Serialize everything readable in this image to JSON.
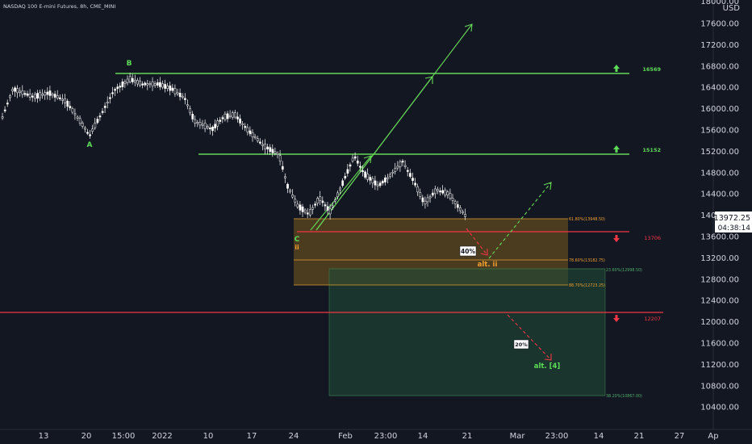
{
  "header": {
    "symbol_title": "NASDAQ 100 E-mini Futures, 8h, CME_MINI"
  },
  "price_axis": {
    "currency": "USD",
    "top_partial_label": "18000.00",
    "labels": [
      "17600.00",
      "17200.00",
      "16800.00",
      "16400.00",
      "16000.00",
      "15600.00",
      "15200.00",
      "14800.00",
      "14400.00",
      "14000.00",
      "13600.00",
      "13200.00",
      "12800.00",
      "12400.00",
      "12000.00",
      "11600.00",
      "11200.00",
      "10800.00",
      "10400.00"
    ],
    "current_price": "13972.25",
    "countdown": "04:38:14"
  },
  "time_axis": {
    "labels": [
      "13",
      "20",
      "15:00",
      "2022",
      "10",
      "17",
      "24",
      "Feb",
      "23:00",
      "14",
      "21",
      "Mar",
      "23:00",
      "14",
      "21",
      "27",
      "Ap"
    ]
  },
  "levels": {
    "resistance_1": "16569",
    "resistance_2": "15152",
    "support_1": "13706",
    "support_2": "12207"
  },
  "fib_labels": {
    "f618": "61.80%(13948.50)",
    "f786": "78.60%(13182.75)",
    "f886": "88.70%(12723.25)",
    "f236": "23.60%(12998.50)",
    "f382": "38.20%(10867.00)"
  },
  "wave_labels": {
    "a": "A",
    "b": "B",
    "c": "C",
    "ii": "ii",
    "alt_ii": "alt. ii",
    "alt_4": "alt. [4]"
  },
  "probabilities": {
    "p40": "40%",
    "p20": "20%"
  },
  "colors": {
    "background": "#131722",
    "candle": "#ffffff",
    "resistance_line": "#66d957",
    "support_line": "#f23645",
    "fib_zone": "#7a5a1e",
    "target_zone": "#1e4a35",
    "orange_text": "#f0a030",
    "green_text": "#5ddc57"
  },
  "icons": [
    "arrow-up-icon",
    "arrow-down-icon"
  ]
}
